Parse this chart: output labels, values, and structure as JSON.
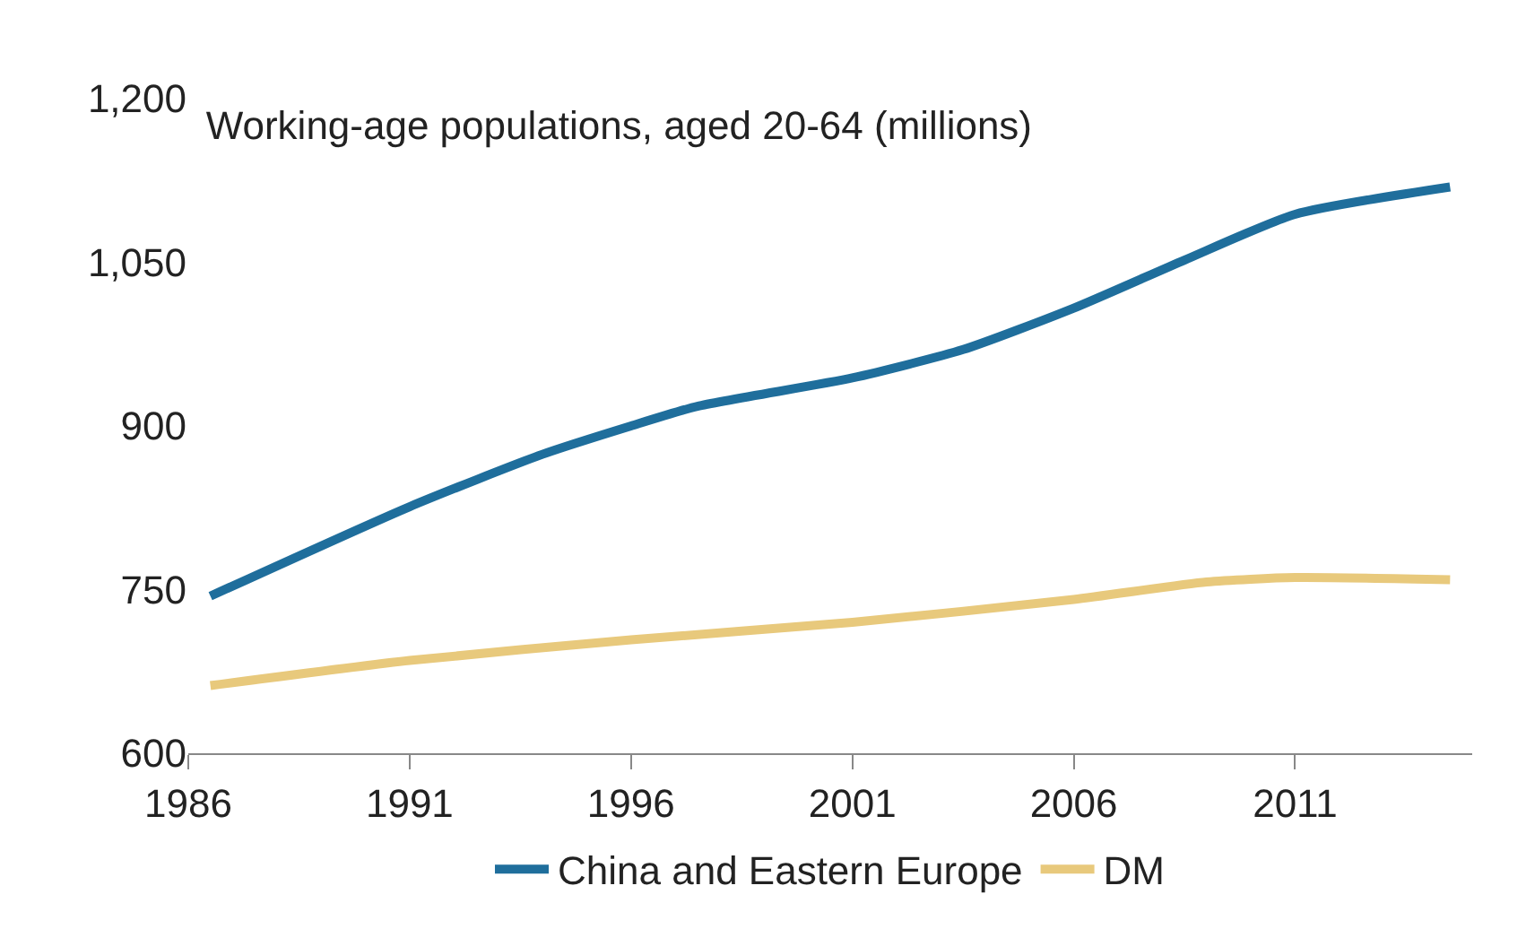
{
  "chart_data": {
    "type": "line",
    "title": "Working-age populations, aged 20-64 (millions)",
    "xlim": [
      1986,
      2015
    ],
    "xticks": [
      1986,
      1991,
      1996,
      2001,
      2006,
      2011
    ],
    "ylim": [
      600,
      1200
    ],
    "yticks": [
      600,
      {
        "value": 750,
        "label": "750"
      },
      {
        "value": 900,
        "label": "900"
      },
      {
        "value": 1050,
        "label": "1,050"
      },
      {
        "value": 1200,
        "label": "1,200"
      }
    ],
    "legend": "bottom",
    "marker": "none",
    "line_style": "solid",
    "series": [
      {
        "name": "China and Eastern Europe",
        "color": "#1f6e9c",
        "x": [
          1986.5,
          1991,
          1994,
          1996,
          1997.5,
          2001,
          2003.5,
          2006,
          2008.5,
          2011,
          2014.5
        ],
        "values": [
          744,
          826,
          874,
          900,
          918,
          944,
          970,
          1008,
          1052,
          1094,
          1119
        ]
      },
      {
        "name": "DM",
        "color": "#e8c97c",
        "x": [
          1986.5,
          1991,
          1996,
          2001,
          2006,
          2009,
          2011,
          2014.5
        ],
        "values": [
          662,
          685,
          704,
          720,
          741,
          757,
          761,
          759
        ]
      }
    ]
  }
}
